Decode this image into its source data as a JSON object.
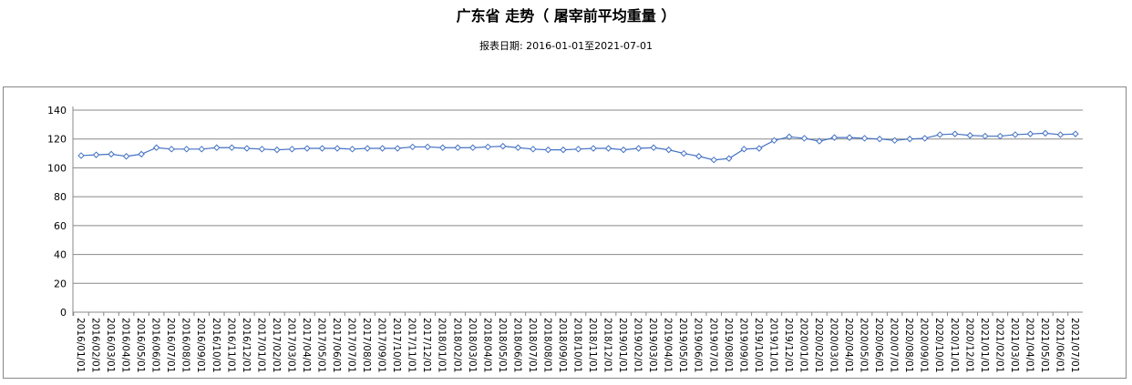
{
  "chart_data": {
    "type": "line",
    "title": "广东省 走势（ 屠宰前平均重量 ）",
    "subtitle": "报表日期: 2016-01-01至2021-07-01",
    "ylim": [
      0,
      140
    ],
    "yticks": [
      0,
      20,
      40,
      60,
      80,
      100,
      120,
      140
    ],
    "grid": true,
    "color": "#4472C4",
    "x": [
      "2016/01/01",
      "2016/02/01",
      "2016/03/01",
      "2016/04/01",
      "2016/05/01",
      "2016/06/01",
      "2016/07/01",
      "2016/08/01",
      "2016/09/01",
      "2016/10/01",
      "2016/11/01",
      "2016/12/01",
      "2017/01/01",
      "2017/02/01",
      "2017/03/01",
      "2017/04/01",
      "2017/05/01",
      "2017/06/01",
      "2017/07/01",
      "2017/08/01",
      "2017/09/01",
      "2017/10/01",
      "2017/11/01",
      "2017/12/01",
      "2018/01/01",
      "2018/02/01",
      "2018/03/01",
      "2018/04/01",
      "2018/05/01",
      "2018/06/01",
      "2018/07/01",
      "2018/08/01",
      "2018/09/01",
      "2018/10/01",
      "2018/11/01",
      "2018/12/01",
      "2019/01/01",
      "2019/02/01",
      "2019/03/01",
      "2019/04/01",
      "2019/05/01",
      "2019/06/01",
      "2019/07/01",
      "2019/08/01",
      "2019/09/01",
      "2019/10/01",
      "2019/11/01",
      "2019/12/01",
      "2020/01/01",
      "2020/02/01",
      "2020/03/01",
      "2020/04/01",
      "2020/05/01",
      "2020/06/01",
      "2020/07/01",
      "2020/08/01",
      "2020/09/01",
      "2020/10/01",
      "2020/11/01",
      "2020/12/01",
      "2021/01/01",
      "2021/02/01",
      "2021/03/01",
      "2021/04/01",
      "2021/05/01",
      "2021/06/01",
      "2021/07/01"
    ],
    "values": [
      108.5,
      109,
      109.5,
      108,
      109.5,
      114,
      113,
      113,
      113,
      114,
      114,
      113.5,
      113,
      112.5,
      113,
      113.5,
      113.5,
      113.5,
      113,
      113.5,
      113.5,
      113.5,
      114.5,
      114.5,
      114,
      114,
      114,
      114.5,
      115,
      114,
      113,
      112.5,
      112.5,
      113,
      113.5,
      113.5,
      112.5,
      113.5,
      114,
      112.5,
      110,
      108,
      105.5,
      106.5,
      113,
      113.5,
      119,
      121.5,
      120.5,
      118.5,
      121,
      121,
      120.5,
      120,
      119,
      120,
      120.5,
      123,
      123.5,
      122.5,
      122,
      122,
      123,
      123.5,
      124,
      123,
      123.5
    ]
  }
}
